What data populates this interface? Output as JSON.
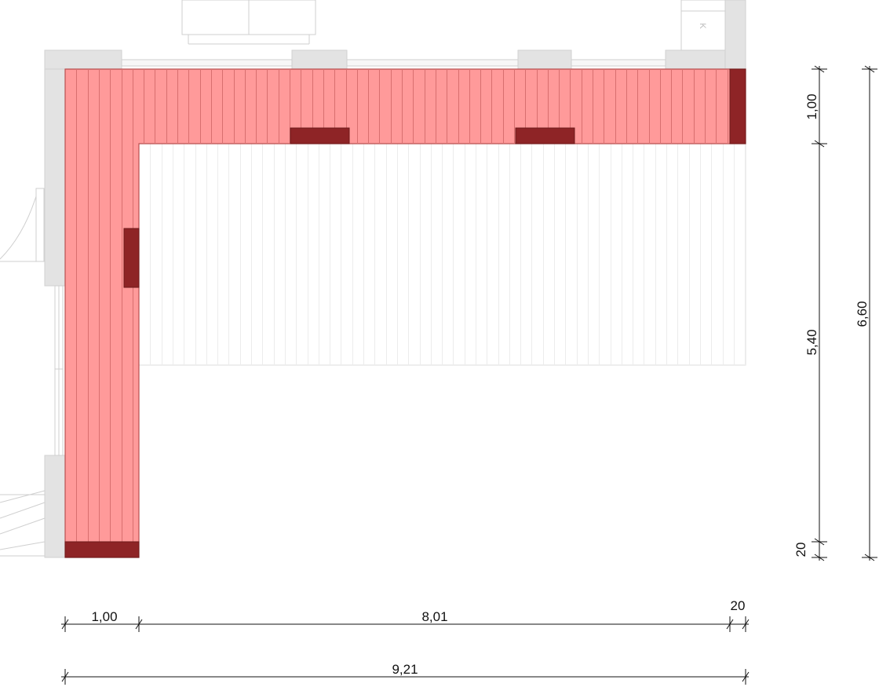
{
  "colors": {
    "wall": "#e3e3e3",
    "wall_edge": "#cfcfcf",
    "highlight_fill": "#ff9a9a",
    "highlight_stroke": "#c25555",
    "plank_line": "#d76f6f",
    "dark_block": "#8e2426",
    "board_line": "#e6e6e6",
    "dimension_line": "#111111"
  },
  "labels": {
    "cabinet_mark": "K"
  },
  "dimensions": {
    "horizontal": {
      "left_segment": "1,00",
      "middle_segment": "8,01",
      "right_segment": "20",
      "total": "9,21"
    },
    "vertical": {
      "top_segment": "1,00",
      "middle_segment": "5,40",
      "bottom_segment": "20",
      "total": "6,60"
    }
  }
}
